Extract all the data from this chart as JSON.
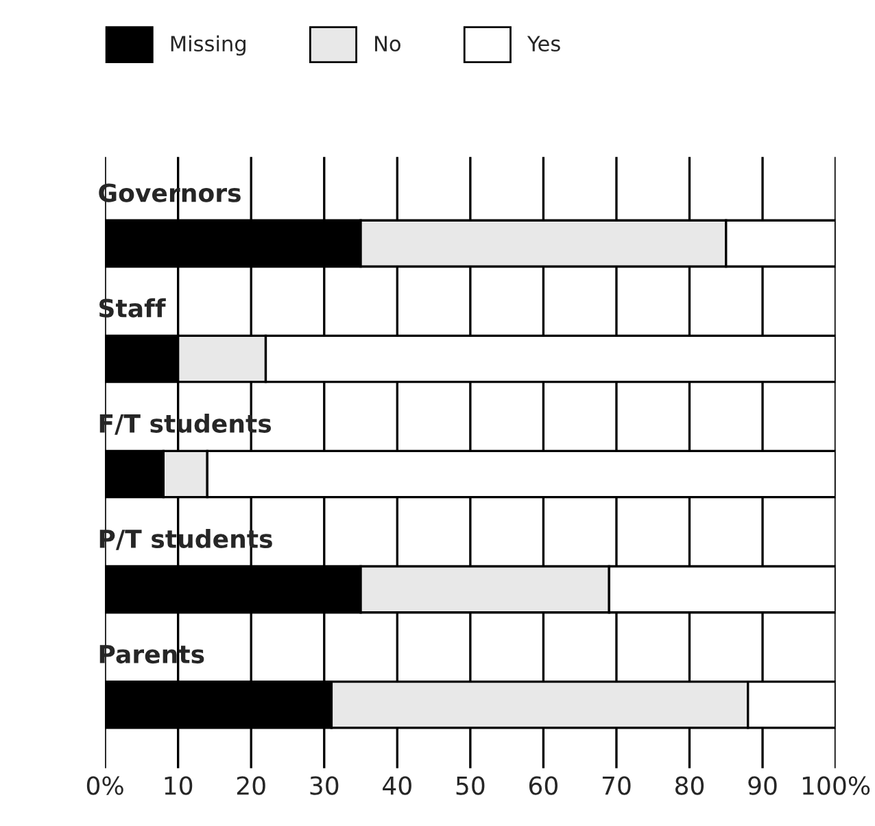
{
  "chart_data": {
    "type": "bar",
    "orientation": "horizontal",
    "stacked": true,
    "categories": [
      "Governors",
      "Staff",
      "F/T students",
      "P/T students",
      "Parents"
    ],
    "series": [
      {
        "name": "Missing",
        "color": "#000000",
        "values": [
          35,
          10,
          8,
          35,
          31
        ]
      },
      {
        "name": "No",
        "color": "#e8e8e8",
        "values": [
          50,
          12,
          6,
          34,
          57
        ]
      },
      {
        "name": "Yes",
        "color": "#ffffff",
        "values": [
          15,
          78,
          86,
          31,
          12
        ]
      }
    ],
    "xlim": [
      0,
      100
    ],
    "xticks": [
      {
        "value": 0,
        "label": "0%"
      },
      10,
      20,
      30,
      40,
      50,
      60,
      70,
      80,
      90,
      {
        "value": 100,
        "label": "100%"
      }
    ],
    "grid": "x",
    "legend": "top left"
  }
}
